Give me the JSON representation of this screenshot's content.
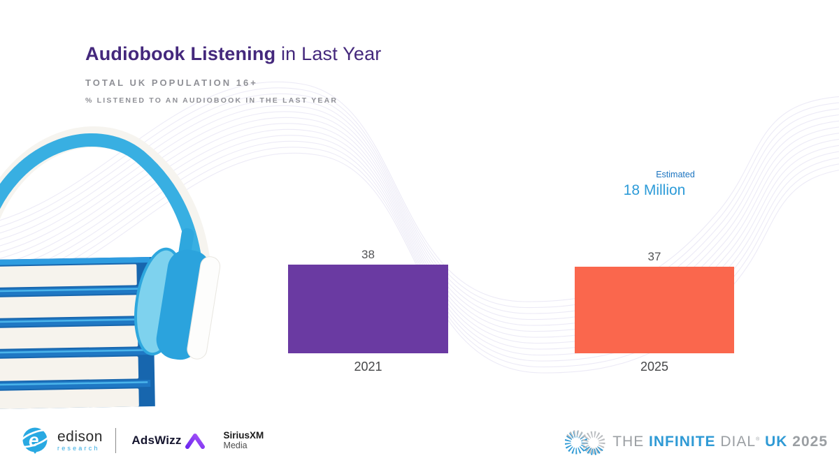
{
  "slide": {
    "title_bold": "Audiobook Listening",
    "title_rest": " in Last Year",
    "subtitle": "TOTAL UK POPULATION 16+",
    "subnote": "% LISTENED TO AN AUDIOBOOK IN THE LAST YEAR"
  },
  "chart_data": {
    "type": "bar",
    "title": "Audiobook Listening in Last Year",
    "subtitle": "Total UK Population 16+",
    "ylabel": "% listened to an audiobook in the last year",
    "categories": [
      "2021",
      "2025"
    ],
    "values": [
      38,
      37
    ],
    "bar_colors": [
      "#6a3aa2",
      "#fa674d"
    ],
    "ylim": [
      0,
      40
    ],
    "grid": false,
    "annotation": {
      "label": "Estimated",
      "value": "18 Million",
      "applies_to": "2025"
    }
  },
  "colors": {
    "accent_purple": "#6a3aa2",
    "accent_orange": "#fa674d",
    "annotation_blue": "#2d9bd8",
    "title_purple": "#44287c"
  },
  "footer": {
    "edison_name": "edison",
    "edison_sub": "research",
    "adswizz": "AdsWizz",
    "siriusxm_top": "SiriusXM",
    "siriusxm_bottom": "Media",
    "dial_the": "THE",
    "dial_infinite": "INFINITE",
    "dial_dial": "DIAL",
    "dial_mark": "®",
    "dial_uk": "UK",
    "dial_year": "2025"
  }
}
